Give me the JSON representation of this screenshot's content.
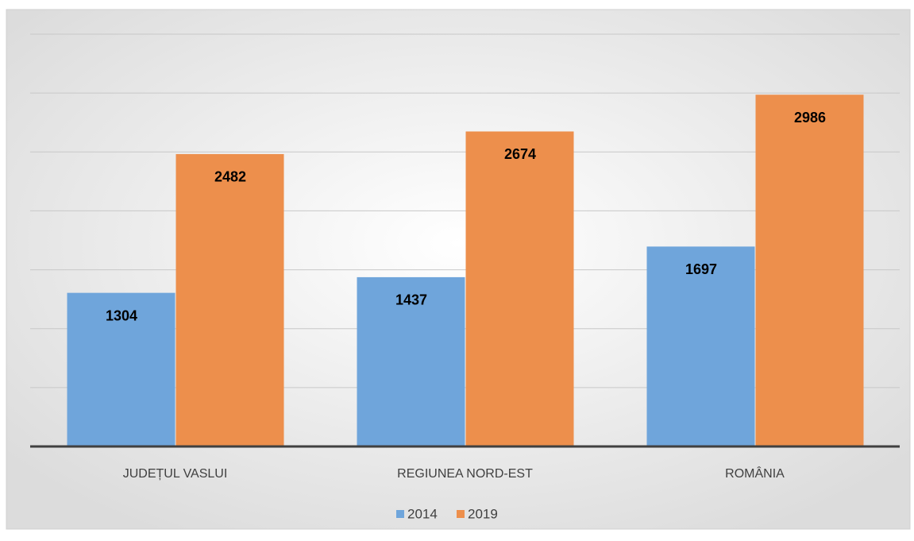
{
  "chart_data": {
    "type": "bar",
    "categories": [
      "JUDEȚUL VASLUI",
      "REGIUNEA NORD-EST",
      "ROMÂNIA"
    ],
    "series": [
      {
        "name": "2014",
        "color": "#6fa5db",
        "values": [
          1304,
          1437,
          1697
        ]
      },
      {
        "name": "2019",
        "color": "#ed8f4c",
        "values": [
          2482,
          2674,
          2986
        ]
      }
    ],
    "ylim": [
      0,
      3500
    ],
    "yticks": [
      0,
      500,
      1000,
      1500,
      2000,
      2500,
      3000,
      3500
    ],
    "grid": true,
    "legend": "bottom"
  }
}
